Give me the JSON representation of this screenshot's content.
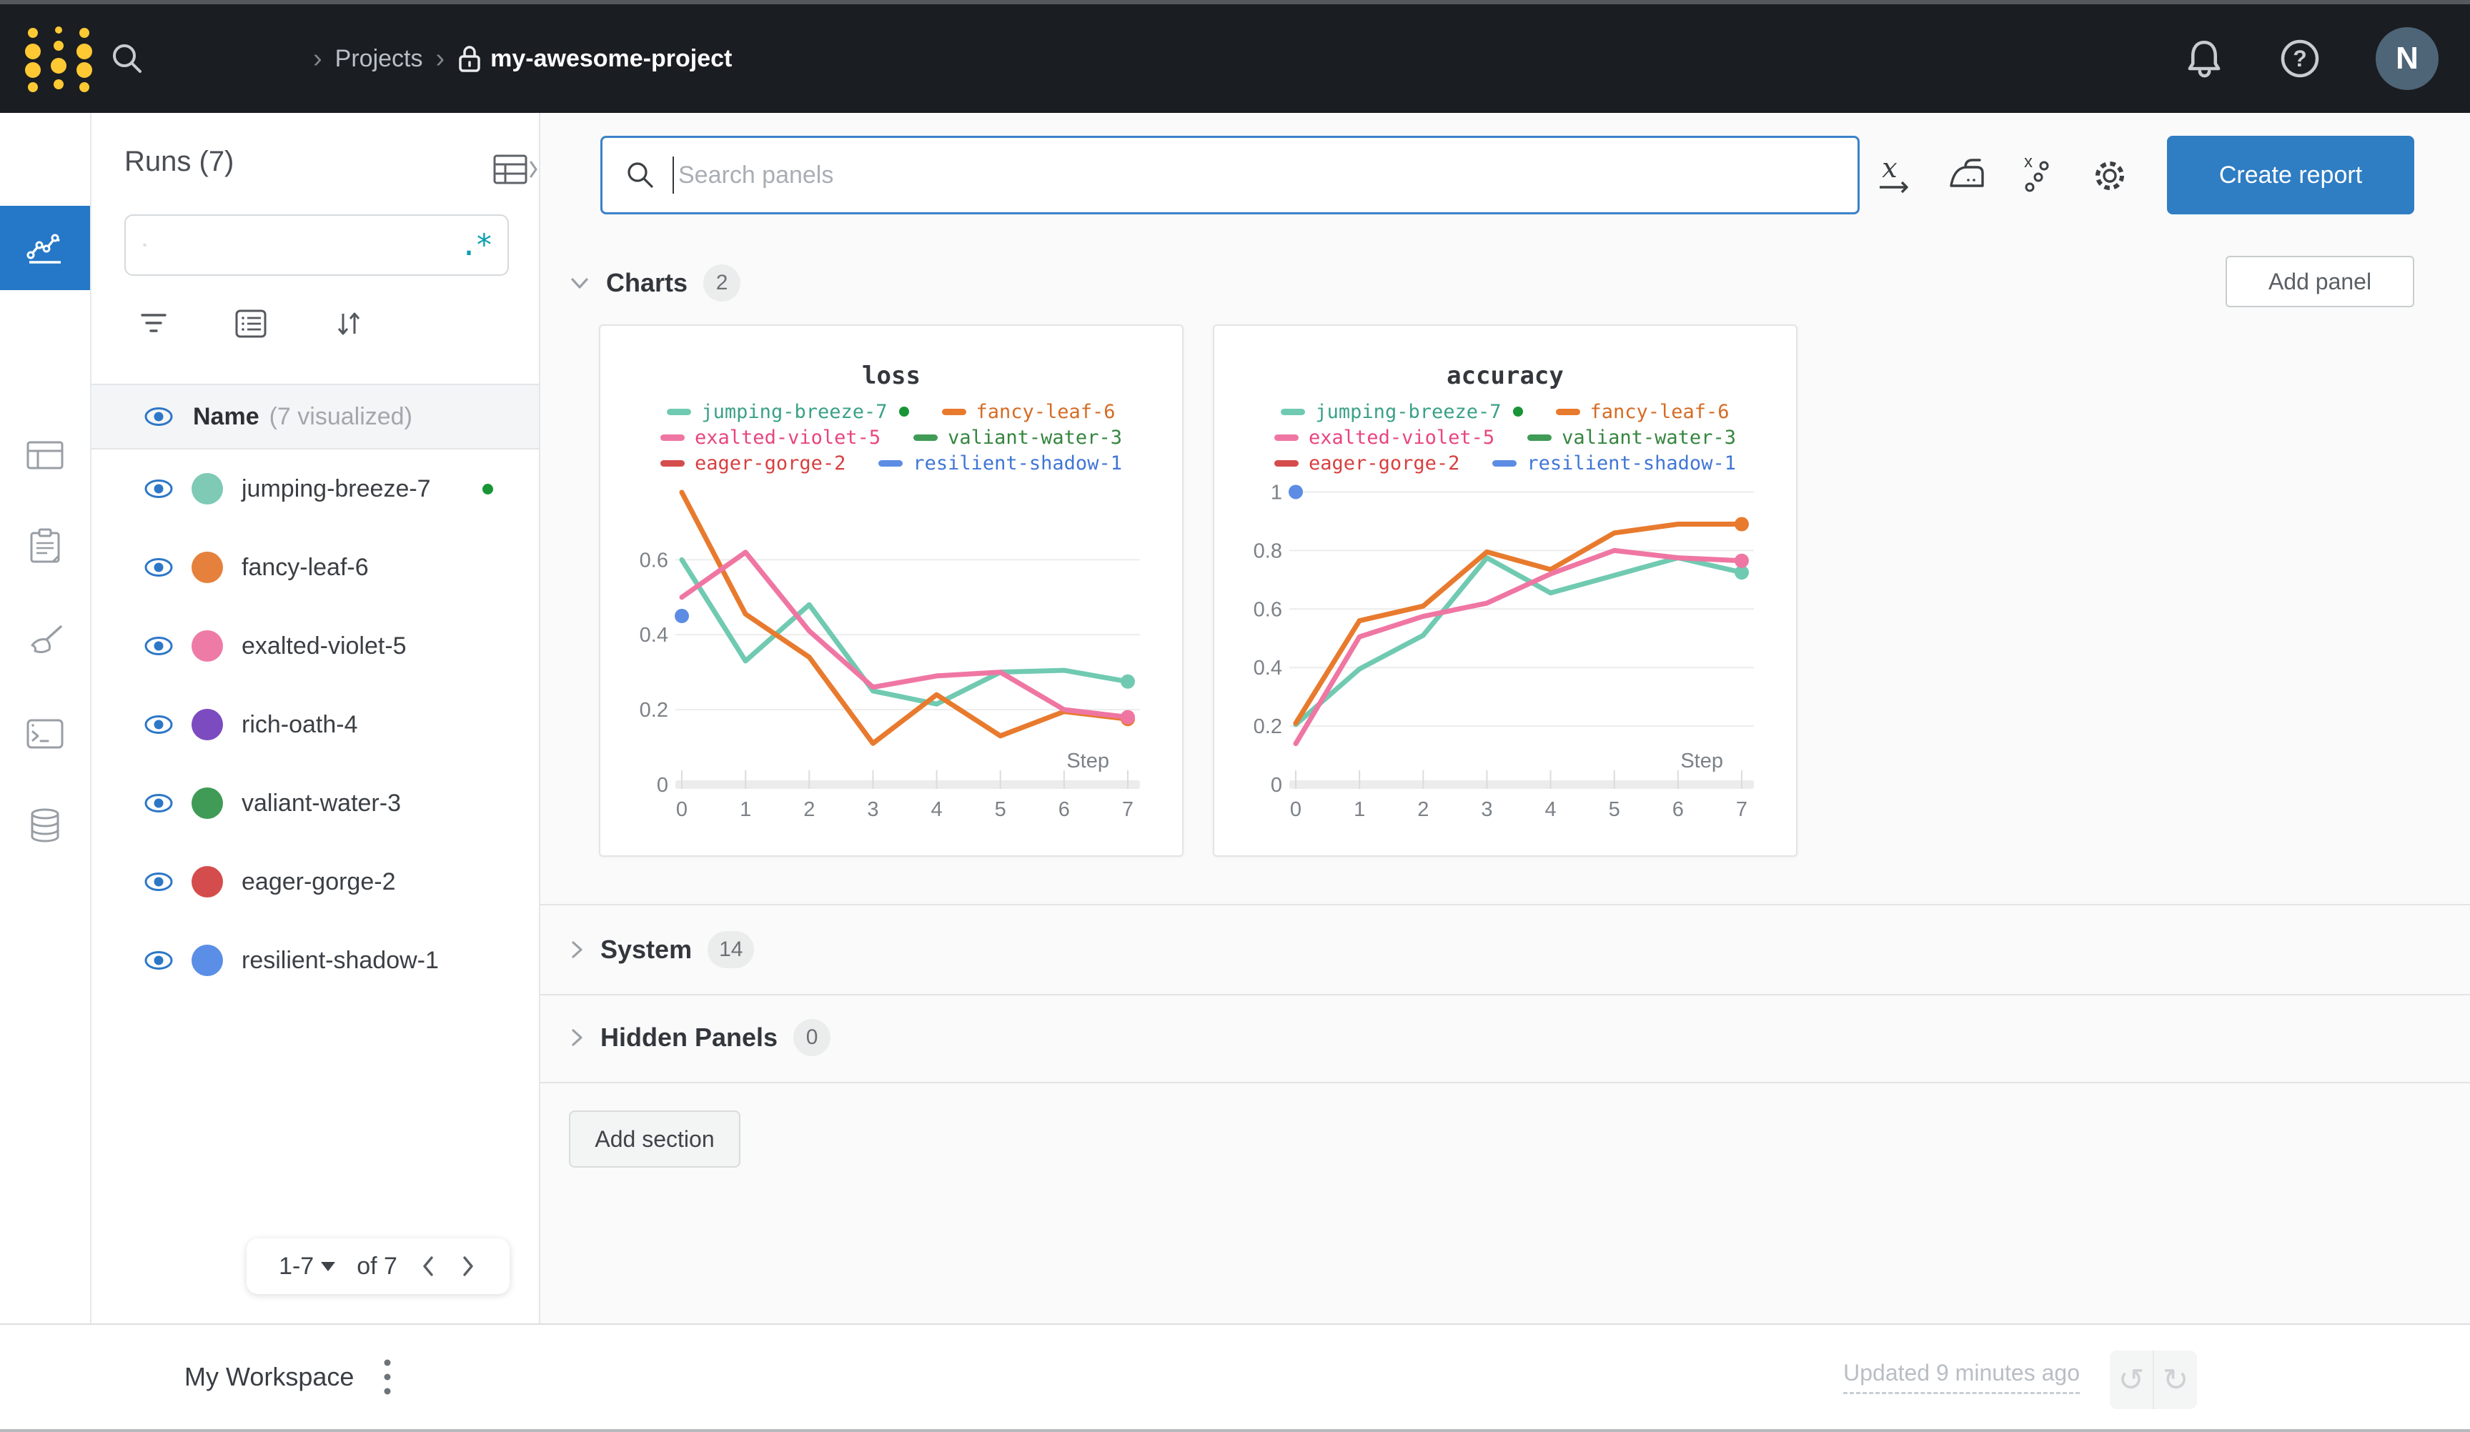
{
  "topbar": {
    "breadcrumb": {
      "chevron": "›",
      "projects_label": "Projects",
      "project_name": "my-awesome-project"
    },
    "avatar_initial": "N"
  },
  "rail": {
    "items": [
      {
        "icon": "info-icon",
        "active": false
      },
      {
        "icon": "line-chart-icon",
        "active": true
      },
      {
        "icon": "table-icon",
        "active": false
      },
      {
        "icon": "clipboard-icon",
        "active": false
      },
      {
        "icon": "broom-icon",
        "active": false
      },
      {
        "icon": "terminal-icon",
        "active": false
      },
      {
        "icon": "database-icon",
        "active": false
      }
    ]
  },
  "runs_sidebar": {
    "title": "Runs (7)",
    "search_value": "",
    "regex_glyph": ".*",
    "name_label": "Name",
    "visualized_label": "(7 visualized)",
    "runs": [
      {
        "name": "jumping-breeze-7",
        "color": "#7ecab4",
        "running": true
      },
      {
        "name": "fancy-leaf-6",
        "color": "#e5813c",
        "running": false
      },
      {
        "name": "exalted-violet-5",
        "color": "#ee7ba6",
        "running": false
      },
      {
        "name": "rich-oath-4",
        "color": "#7c4bc0",
        "running": false
      },
      {
        "name": "valiant-water-3",
        "color": "#3f9b55",
        "running": false
      },
      {
        "name": "eager-gorge-2",
        "color": "#d54c4c",
        "running": false
      },
      {
        "name": "resilient-shadow-1",
        "color": "#5b8ee6",
        "running": false
      }
    ],
    "pagination": {
      "range": "1-7",
      "of": "of 7"
    }
  },
  "main": {
    "search_placeholder": "Search panels",
    "create_report_label": "Create report",
    "add_panel_label": "Add panel",
    "sections": [
      {
        "label": "Charts",
        "count": "2"
      },
      {
        "label": "System",
        "count": "14"
      },
      {
        "label": "Hidden Panels",
        "count": "0"
      }
    ],
    "add_section_label": "Add section"
  },
  "bottombar": {
    "workspace_label": "My Workspace",
    "updated_label": "Updated 9 minutes ago"
  },
  "colors": {
    "accent_blue": "#2f7dc3",
    "active_nav_blue": "#2578c7",
    "eye_blue": "#2d77c7",
    "running_green": "#189536",
    "regex_teal": "#0b9fae",
    "topbar_bg": "#1a1d21",
    "logo_gold": "#ffc933"
  },
  "chart_data": [
    {
      "type": "line",
      "title": "loss",
      "xlabel": "Step",
      "x": [
        0,
        1,
        2,
        3,
        4,
        5,
        6,
        7
      ],
      "xticks": [
        0,
        1,
        2,
        3,
        4,
        5,
        6,
        7
      ],
      "yticks": [
        0,
        0.2,
        0.4,
        0.6
      ],
      "ylim": [
        0,
        0.82
      ],
      "grid": true,
      "legend_position": "top",
      "series": [
        {
          "name": "jumping-breeze-7",
          "color": "#70cab1",
          "legend_color": "#3aa188",
          "running": true,
          "end_dot": true,
          "values": [
            0.6,
            0.33,
            0.48,
            0.25,
            0.215,
            0.3,
            0.305,
            0.275
          ]
        },
        {
          "name": "fancy-leaf-6",
          "color": "#e87a2e",
          "legend_color": "#d66b24",
          "end_dot": true,
          "values": [
            0.78,
            0.455,
            0.34,
            0.11,
            0.24,
            0.13,
            0.195,
            0.175
          ]
        },
        {
          "name": "exalted-violet-5",
          "color": "#ef76a3",
          "legend_color": "#e8457f",
          "end_dot": true,
          "values": [
            0.5,
            0.62,
            0.41,
            0.26,
            0.29,
            0.3,
            0.2,
            0.18
          ]
        },
        {
          "name": "valiant-water-3",
          "color": "#3f9b55",
          "legend_color": "#35853f",
          "values": null
        },
        {
          "name": "eager-gorge-2",
          "color": "#d54c4c",
          "legend_color": "#d84040",
          "values": null
        },
        {
          "name": "resilient-shadow-1",
          "color": "#5c8ce4",
          "legend_color": "#4076d6",
          "values": null,
          "points": [
            [
              0,
              0.45
            ]
          ]
        }
      ]
    },
    {
      "type": "line",
      "title": "accuracy",
      "xlabel": "Step",
      "x": [
        0,
        1,
        2,
        3,
        4,
        5,
        6,
        7
      ],
      "xticks": [
        0,
        1,
        2,
        3,
        4,
        5,
        6,
        7
      ],
      "yticks": [
        0,
        0.2,
        0.4,
        0.6,
        0.8,
        1
      ],
      "ylim": [
        0,
        1.05
      ],
      "grid": true,
      "legend_position": "top",
      "series": [
        {
          "name": "jumping-breeze-7",
          "color": "#70cab1",
          "legend_color": "#3aa188",
          "running": true,
          "end_dot": true,
          "values": [
            0.205,
            0.395,
            0.51,
            0.775,
            0.655,
            0.715,
            0.775,
            0.725
          ]
        },
        {
          "name": "fancy-leaf-6",
          "color": "#e87a2e",
          "legend_color": "#d66b24",
          "end_dot": true,
          "values": [
            0.21,
            0.56,
            0.61,
            0.795,
            0.735,
            0.86,
            0.89,
            0.89
          ]
        },
        {
          "name": "exalted-violet-5",
          "color": "#ef76a3",
          "legend_color": "#e8457f",
          "end_dot": true,
          "values": [
            0.14,
            0.505,
            0.575,
            0.62,
            0.72,
            0.8,
            0.775,
            0.765
          ]
        },
        {
          "name": "valiant-water-3",
          "color": "#3f9b55",
          "legend_color": "#35853f",
          "values": null
        },
        {
          "name": "eager-gorge-2",
          "color": "#d54c4c",
          "legend_color": "#d84040",
          "values": null
        },
        {
          "name": "resilient-shadow-1",
          "color": "#5c8ce4",
          "legend_color": "#4076d6",
          "values": null,
          "points": [
            [
              0,
              1.0
            ]
          ]
        }
      ]
    }
  ]
}
